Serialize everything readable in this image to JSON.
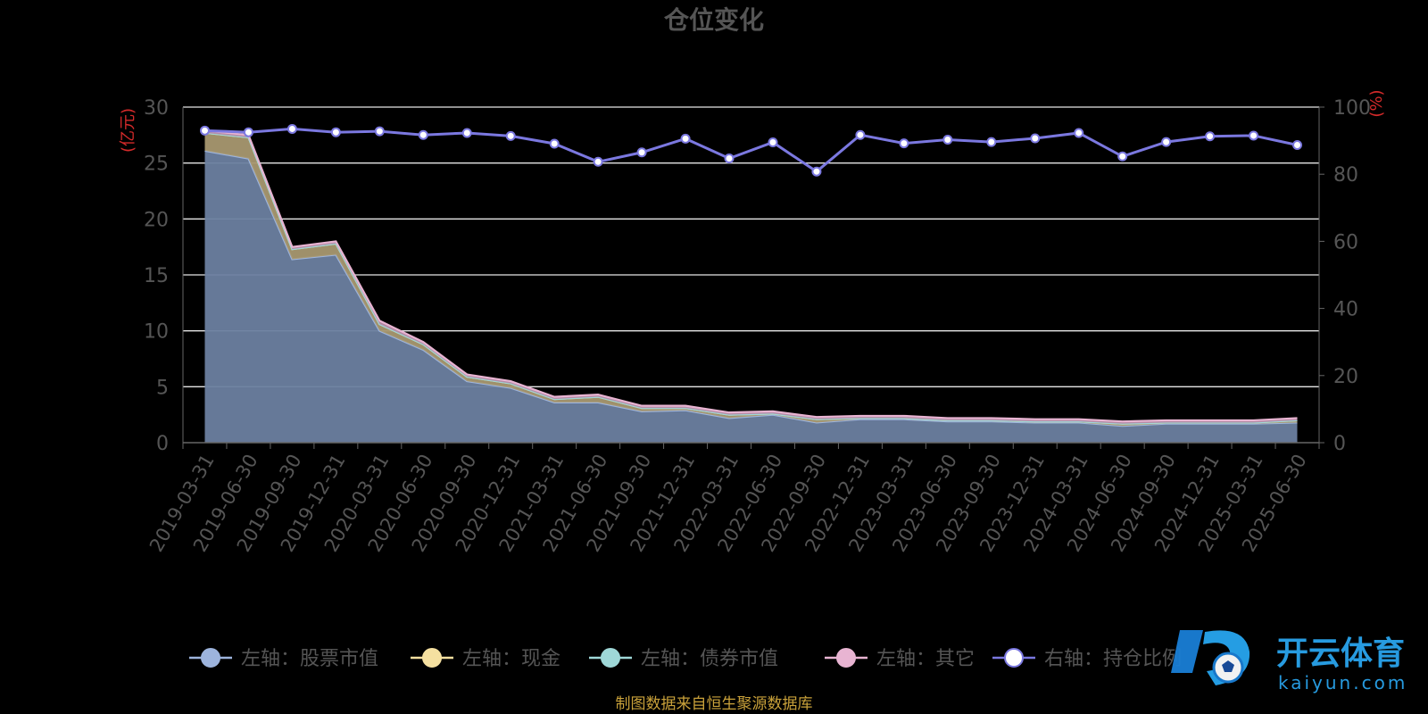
{
  "chart_data": {
    "type": "area",
    "title": "仓位变化",
    "left_unit": "(亿元)",
    "right_unit": "(%)",
    "x": [
      "2019-03-31",
      "2019-06-30",
      "2019-09-30",
      "2019-12-31",
      "2020-03-31",
      "2020-06-30",
      "2020-09-30",
      "2020-12-31",
      "2021-03-31",
      "2021-06-30",
      "2021-09-30",
      "2021-12-31",
      "2022-03-31",
      "2022-06-30",
      "2022-09-30",
      "2022-12-31",
      "2023-03-31",
      "2023-06-30",
      "2023-09-30",
      "2023-12-31",
      "2024-03-31",
      "2024-06-30",
      "2024-09-30",
      "2024-12-31",
      "2025-03-31",
      "2025-06-30"
    ],
    "y_left_range": [
      0,
      30
    ],
    "y_left_ticks": [
      "0",
      "5",
      "10",
      "15",
      "20",
      "25",
      "30"
    ],
    "y_right_range": [
      0,
      100
    ],
    "y_right_ticks": [
      "0",
      "20",
      "40",
      "60",
      "80",
      "100"
    ],
    "series": [
      {
        "name": "左轴：股票市值",
        "axis": "left",
        "color": "#9db4dd",
        "values": [
          26.1,
          25.4,
          16.4,
          16.8,
          10.0,
          8.3,
          5.5,
          4.9,
          3.6,
          3.6,
          2.8,
          2.9,
          2.2,
          2.5,
          1.8,
          2.1,
          2.1,
          1.9,
          1.9,
          1.8,
          1.8,
          1.5,
          1.7,
          1.7,
          1.7,
          1.8
        ]
      },
      {
        "name": "左轴：现金",
        "axis": "left",
        "color": "#f5e0a0",
        "values": [
          1.6,
          1.9,
          0.9,
          1.0,
          0.6,
          0.5,
          0.4,
          0.4,
          0.3,
          0.5,
          0.3,
          0.2,
          0.3,
          0.1,
          0.3,
          0.1,
          0.1,
          0.1,
          0.1,
          0.1,
          0.1,
          0.2,
          0.1,
          0.1,
          0.1,
          0.2
        ]
      },
      {
        "name": "左轴：债券市值",
        "axis": "left",
        "color": "#9fd8d8",
        "values": [
          0,
          0,
          0,
          0,
          0,
          0,
          0,
          0,
          0,
          0,
          0,
          0,
          0,
          0,
          0,
          0,
          0,
          0,
          0,
          0,
          0,
          0,
          0,
          0,
          0,
          0
        ]
      },
      {
        "name": "左轴：其它",
        "axis": "left",
        "color": "#e8b4d2",
        "values": [
          0.2,
          0.2,
          0.2,
          0.2,
          0.3,
          0.2,
          0.2,
          0.2,
          0.2,
          0.2,
          0.2,
          0.2,
          0.2,
          0.2,
          0.2,
          0.2,
          0.2,
          0.2,
          0.2,
          0.2,
          0.2,
          0.2,
          0.2,
          0.2,
          0.2,
          0.2
        ]
      },
      {
        "name": "右轴：持仓比例",
        "axis": "right",
        "color": "#7b78e0",
        "values": [
          93.0,
          92.5,
          93.5,
          92.5,
          92.8,
          91.7,
          92.3,
          91.4,
          89.1,
          83.7,
          86.5,
          90.6,
          84.7,
          89.5,
          80.8,
          91.7,
          89.2,
          90.3,
          89.6,
          90.7,
          92.3,
          85.3,
          89.6,
          91.3,
          91.5,
          88.7
        ]
      }
    ],
    "grid": true,
    "legend_position": "bottom",
    "source_note": "制图数据来自恒生聚源数据库"
  },
  "watermark": {
    "brand": "开云体育",
    "domain": "kaiyun.com"
  }
}
